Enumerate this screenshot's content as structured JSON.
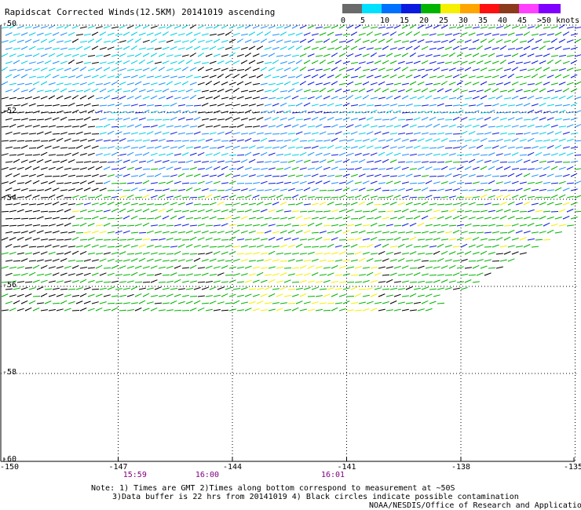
{
  "header": {
    "title": "Rapidscat Corrected Winds(12.5KM) 20141019 ascending"
  },
  "legend": {
    "bins": [
      {
        "label": "0",
        "color": "#6a6a6a"
      },
      {
        "label": "5",
        "color": "#00e0ff"
      },
      {
        "label": "10",
        "color": "#0070ff"
      },
      {
        "label": "15",
        "color": "#0a1ae0"
      },
      {
        "label": "20",
        "color": "#00b400"
      },
      {
        "label": "25",
        "color": "#f5f000"
      },
      {
        "label": "30",
        "color": "#ffa500"
      },
      {
        "label": "35",
        "color": "#ff1010"
      },
      {
        "label": "40",
        "color": "#8b3a1a"
      },
      {
        "label": "45",
        "color": "#ff40ff"
      },
      {
        "label": ">50 knots",
        "color": "#8000ff"
      }
    ]
  },
  "map": {
    "lat_labels": [
      "-50",
      "-52",
      "-54",
      "-56",
      "-58",
      "-60"
    ],
    "lon_labels": [
      "-150",
      "-147",
      "-144",
      "-141",
      "-138",
      "-135"
    ],
    "lat_range": [
      -60,
      -50
    ],
    "lon_range": [
      -150,
      -135
    ],
    "grid": "dotted",
    "swath_lat_south_edge": -56.6
  },
  "times": [
    {
      "label": "15:59",
      "lon": -146.5
    },
    {
      "label": "16:00",
      "lon": -144.6
    },
    {
      "label": "16:01",
      "lon": -141.3
    }
  ],
  "notes": {
    "line1": "Note: 1) Times are GMT 2)Times along bottom correspond to measurement at ~50S",
    "line2": "3)Data buffer is 22 hrs from 20141019 4) Black circles indicate possible contamination",
    "credit": "NOAA/NESDIS/Office of Research and Applications"
  },
  "colors": {
    "black_barb": "#000000",
    "cyan": "#00d0e8",
    "light_blue": "#1e90ff",
    "blue": "#0a1ae0",
    "green": "#00b400",
    "yellow": "#f5f000"
  }
}
